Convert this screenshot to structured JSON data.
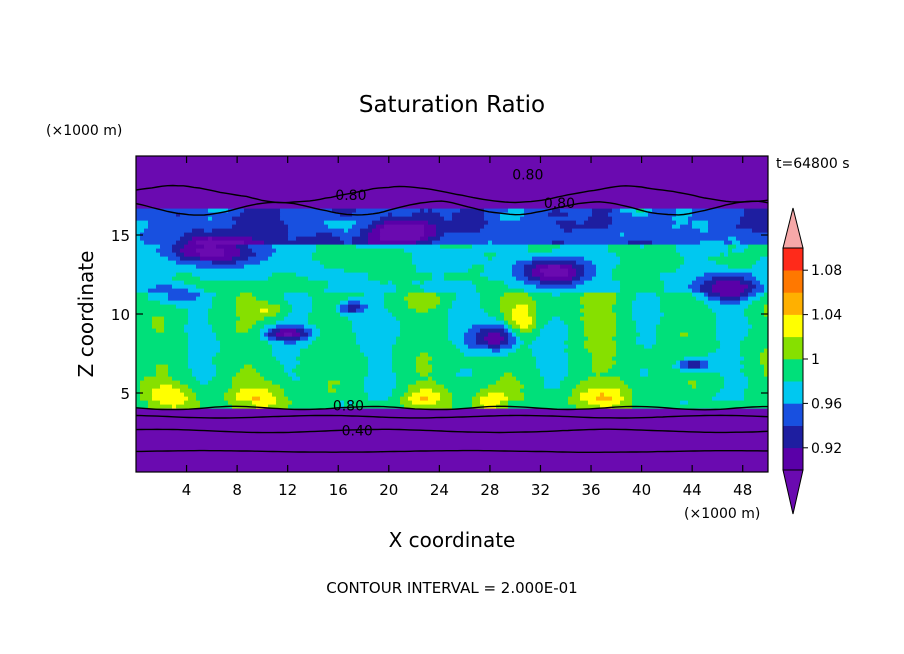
{
  "chart_data": {
    "type": "heatmap",
    "title": "Saturation Ratio",
    "time_label": "t=64800 s",
    "xlabel": "X coordinate",
    "ylabel": "Z coordinate",
    "x_unit": "(×1000 m)",
    "z_unit": "(×1000 m)",
    "xlim": [
      0,
      50
    ],
    "zlim": [
      0,
      20
    ],
    "x_ticks": [
      4,
      8,
      12,
      16,
      20,
      24,
      28,
      32,
      36,
      40,
      44,
      48
    ],
    "z_ticks": [
      5,
      10,
      15
    ],
    "footer": "CONTOUR INTERVAL = 2.000E-01",
    "contour_labels": [
      "0.80",
      "0.80",
      "0.80",
      "0.80",
      "0.40"
    ],
    "colorbar": {
      "labels": [
        "1.08",
        "1.04",
        "1",
        "0.96",
        "0.92"
      ],
      "levels": [
        0.9,
        0.92,
        0.94,
        0.96,
        0.98,
        1.0,
        1.02,
        1.04,
        1.06,
        1.08,
        1.1
      ],
      "colors": [
        "#5a00a8",
        "#1e1ea0",
        "#1850e0",
        "#00c8f0",
        "#00e07a",
        "#86e000",
        "#ffff00",
        "#ffb000",
        "#ff7800",
        "#ff2a1a"
      ],
      "under_color": "#6a0ab0",
      "over_color": "#f6a8a8"
    }
  }
}
